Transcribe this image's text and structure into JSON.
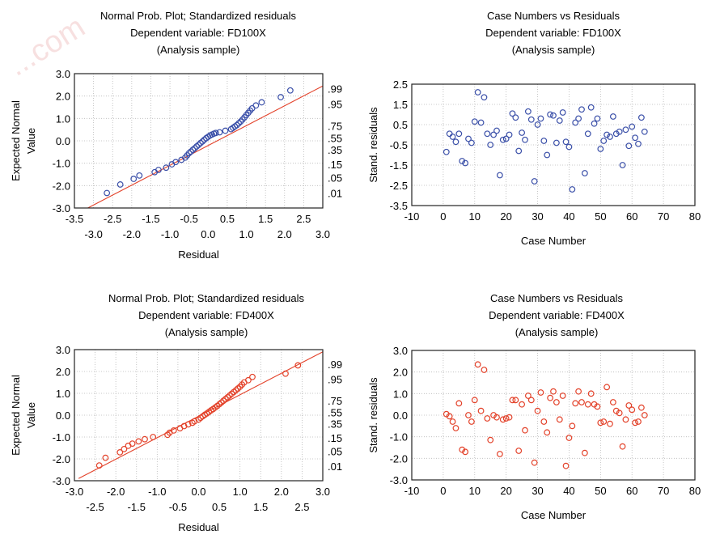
{
  "watermark": "...com",
  "colors": {
    "blue": "#3a4fa8",
    "red": "#e3422a",
    "refline": "#e3422a",
    "grid": "#b8b8b8"
  },
  "chart_data": [
    {
      "type": "scatter",
      "subtype": "normal-probability",
      "title_lines": [
        "Normal Prob. Plot; Standardized residuals",
        "Dependent variable: FD100X",
        "(Analysis sample)"
      ],
      "xlabel": "Residual",
      "ylabel_lines": [
        "Expected Normal",
        "Value"
      ],
      "xlim": [
        -3.5,
        3.0
      ],
      "ylim": [
        -3.0,
        3.0
      ],
      "x_ticks_row1": [
        "-3.5",
        "-2.5",
        "-1.5",
        "-0.5",
        "0.5",
        "1.5",
        "2.5"
      ],
      "x_ticks_row2": [
        "-3.0",
        "-2.0",
        "-1.0",
        "0.0",
        "1.0",
        "2.0",
        "3.0"
      ],
      "y_ticks": [
        "3.0",
        "2.0",
        "1.0",
        "0.0",
        "-1.0",
        "-2.0",
        "-3.0"
      ],
      "right_prob_labels": [
        ".99",
        ".95",
        ".75",
        ".55",
        ".35",
        ".15",
        ".05",
        ".01"
      ],
      "right_prob_z": [
        2.33,
        1.65,
        0.67,
        0.13,
        -0.39,
        -1.04,
        -1.65,
        -2.33
      ],
      "reference_line": [
        [
          -3.15,
          -3.0
        ],
        [
          3.0,
          2.45
        ]
      ],
      "color": "#3a4fa8",
      "x": [
        -2.65,
        -2.3,
        -1.95,
        -1.8,
        -1.4,
        -1.3,
        -1.1,
        -0.95,
        -0.85,
        -0.7,
        -0.6,
        -0.55,
        -0.5,
        -0.45,
        -0.4,
        -0.35,
        -0.3,
        -0.25,
        -0.2,
        -0.15,
        -0.1,
        -0.05,
        0.0,
        0.05,
        0.1,
        0.15,
        0.2,
        0.3,
        0.45,
        0.6,
        0.65,
        0.7,
        0.75,
        0.8,
        0.85,
        0.9,
        0.95,
        1.0,
        1.05,
        1.1,
        1.15,
        1.25,
        1.4,
        1.9,
        2.15
      ],
      "y": [
        -2.33,
        -1.95,
        -1.7,
        -1.55,
        -1.4,
        -1.3,
        -1.2,
        -1.05,
        -0.95,
        -0.85,
        -0.75,
        -0.65,
        -0.55,
        -0.48,
        -0.4,
        -0.33,
        -0.25,
        -0.18,
        -0.1,
        -0.03,
        0.05,
        0.12,
        0.18,
        0.24,
        0.28,
        0.32,
        0.35,
        0.38,
        0.45,
        0.52,
        0.58,
        0.64,
        0.7,
        0.78,
        0.86,
        0.95,
        1.05,
        1.15,
        1.25,
        1.35,
        1.45,
        1.58,
        1.72,
        1.95,
        2.25
      ]
    },
    {
      "type": "scatter",
      "title_lines": [
        "Case Numbers vs  Residuals",
        "Dependent variable: FD100X",
        "(Analysis sample)"
      ],
      "xlabel": "Case Number",
      "ylabel": "Stand. residuals",
      "xlim": [
        -10,
        80
      ],
      "ylim": [
        -3.5,
        2.5
      ],
      "x_ticks": [
        "-10",
        "0",
        "10",
        "20",
        "30",
        "40",
        "50",
        "60",
        "70",
        "80"
      ],
      "y_ticks": [
        "2.5",
        "1.5",
        "0.5",
        "-0.5",
        "-1.5",
        "-2.5",
        "-3.5"
      ],
      "color": "#3a4fa8",
      "x": [
        1,
        2,
        3,
        4,
        5,
        6,
        7,
        8,
        9,
        10,
        11,
        12,
        13,
        14,
        15,
        16,
        17,
        18,
        19,
        20,
        21,
        22,
        23,
        24,
        25,
        26,
        27,
        28,
        29,
        30,
        31,
        32,
        33,
        34,
        35,
        36,
        37,
        38,
        39,
        40,
        41,
        42,
        43,
        44,
        45,
        46,
        47,
        48,
        49,
        50,
        51,
        52,
        53,
        54,
        55,
        56,
        57,
        58,
        59,
        60,
        61,
        62,
        63,
        64
      ],
      "y": [
        -0.85,
        0.05,
        -0.1,
        -0.35,
        0.05,
        -1.3,
        -1.4,
        -0.2,
        -0.4,
        0.65,
        2.1,
        0.6,
        1.85,
        0.05,
        -0.5,
        0.0,
        0.2,
        -2.0,
        -0.25,
        -0.2,
        0.0,
        1.05,
        0.85,
        -0.8,
        0.1,
        -0.25,
        1.15,
        0.75,
        -2.3,
        0.5,
        0.8,
        -0.3,
        -1.0,
        1.0,
        0.95,
        -0.4,
        0.7,
        1.1,
        -0.35,
        -0.6,
        -2.7,
        0.6,
        0.8,
        1.25,
        -1.9,
        0.05,
        1.35,
        0.55,
        0.8,
        -0.7,
        -0.3,
        0.0,
        -0.1,
        0.9,
        0.05,
        0.15,
        -1.5,
        0.25,
        -0.55,
        0.4,
        -0.15,
        -0.45,
        0.85,
        0.15
      ]
    },
    {
      "type": "scatter",
      "subtype": "normal-probability",
      "title_lines": [
        "Normal Prob. Plot; Standardized residuals",
        "Dependent variable: FD400X",
        "(Analysis sample)"
      ],
      "xlabel": "Residual",
      "ylabel_lines": [
        "Expected Normal",
        "Value"
      ],
      "xlim": [
        -3.0,
        3.0
      ],
      "ylim": [
        -3.0,
        3.0
      ],
      "x_ticks_row1": [
        "-3.0",
        "-2.0",
        "-1.0",
        "0.0",
        "1.0",
        "2.0",
        "3.0"
      ],
      "x_ticks_row2": [
        "-2.5",
        "-1.5",
        "-0.5",
        "0.5",
        "1.5",
        "2.5"
      ],
      "y_ticks": [
        "3.0",
        "2.0",
        "1.0",
        "0.0",
        "-1.0",
        "-2.0",
        "-3.0"
      ],
      "right_prob_labels": [
        ".99",
        ".95",
        ".75",
        ".55",
        ".35",
        ".15",
        ".05",
        ".01"
      ],
      "right_prob_z": [
        2.33,
        1.65,
        0.67,
        0.13,
        -0.39,
        -1.04,
        -1.65,
        -2.33
      ],
      "reference_line": [
        [
          -2.9,
          -2.9
        ],
        [
          3.0,
          2.9
        ]
      ],
      "color": "#e3422a",
      "x": [
        -2.4,
        -2.25,
        -1.9,
        -1.8,
        -1.7,
        -1.6,
        -1.45,
        -1.3,
        -1.1,
        -0.75,
        -0.7,
        -0.6,
        -0.45,
        -0.35,
        -0.25,
        -0.15,
        -0.1,
        0.0,
        0.05,
        0.1,
        0.15,
        0.2,
        0.25,
        0.3,
        0.35,
        0.4,
        0.45,
        0.5,
        0.55,
        0.6,
        0.65,
        0.7,
        0.75,
        0.8,
        0.85,
        0.9,
        0.95,
        1.0,
        1.05,
        1.1,
        1.2,
        1.3,
        2.1,
        2.4
      ],
      "y": [
        -2.3,
        -1.95,
        -1.7,
        -1.55,
        -1.4,
        -1.3,
        -1.2,
        -1.1,
        -1.0,
        -0.9,
        -0.8,
        -0.7,
        -0.6,
        -0.5,
        -0.42,
        -0.35,
        -0.28,
        -0.2,
        -0.12,
        -0.05,
        0.02,
        0.08,
        0.15,
        0.22,
        0.28,
        0.35,
        0.42,
        0.5,
        0.58,
        0.66,
        0.74,
        0.82,
        0.9,
        0.98,
        1.06,
        1.14,
        1.22,
        1.3,
        1.4,
        1.5,
        1.6,
        1.75,
        1.9,
        2.28
      ]
    },
    {
      "type": "scatter",
      "title_lines": [
        "Case Numbers vs  Residuals",
        "Dependent variable: FD400X",
        "(Analysis sample)"
      ],
      "xlabel": "Case Number",
      "ylabel": "Stand. residuals",
      "xlim": [
        -10,
        80
      ],
      "ylim": [
        -3.0,
        3.0
      ],
      "x_ticks": [
        "-10",
        "0",
        "10",
        "20",
        "30",
        "40",
        "50",
        "60",
        "70",
        "80"
      ],
      "y_ticks": [
        "3.0",
        "2.0",
        "1.0",
        "0.0",
        "-1.0",
        "-2.0",
        "-3.0"
      ],
      "color": "#e3422a",
      "x": [
        1,
        2,
        3,
        4,
        5,
        6,
        7,
        8,
        9,
        10,
        11,
        12,
        13,
        14,
        15,
        16,
        17,
        18,
        19,
        20,
        21,
        22,
        23,
        24,
        25,
        26,
        27,
        28,
        29,
        30,
        31,
        32,
        33,
        34,
        35,
        36,
        37,
        38,
        39,
        40,
        41,
        42,
        43,
        44,
        45,
        46,
        47,
        48,
        49,
        50,
        51,
        52,
        53,
        54,
        55,
        56,
        57,
        58,
        59,
        60,
        61,
        62,
        63,
        64
      ],
      "y": [
        0.05,
        -0.05,
        -0.3,
        -0.6,
        0.55,
        -1.6,
        -1.7,
        0.0,
        -0.3,
        0.7,
        2.35,
        0.2,
        2.1,
        -0.15,
        -1.15,
        0.0,
        -0.1,
        -1.8,
        -0.2,
        -0.15,
        -0.1,
        0.7,
        0.7,
        -1.65,
        0.5,
        -0.7,
        0.9,
        0.7,
        -2.2,
        0.2,
        1.05,
        -0.3,
        -0.8,
        0.8,
        1.1,
        0.6,
        -0.2,
        0.9,
        -2.35,
        -1.05,
        -0.5,
        0.55,
        1.1,
        0.6,
        -1.75,
        0.5,
        1.0,
        0.5,
        0.4,
        -0.35,
        -0.3,
        1.3,
        -0.4,
        0.6,
        0.2,
        0.1,
        -1.45,
        -0.2,
        0.45,
        0.25,
        -0.35,
        -0.3,
        0.35,
        0.0
      ]
    }
  ]
}
